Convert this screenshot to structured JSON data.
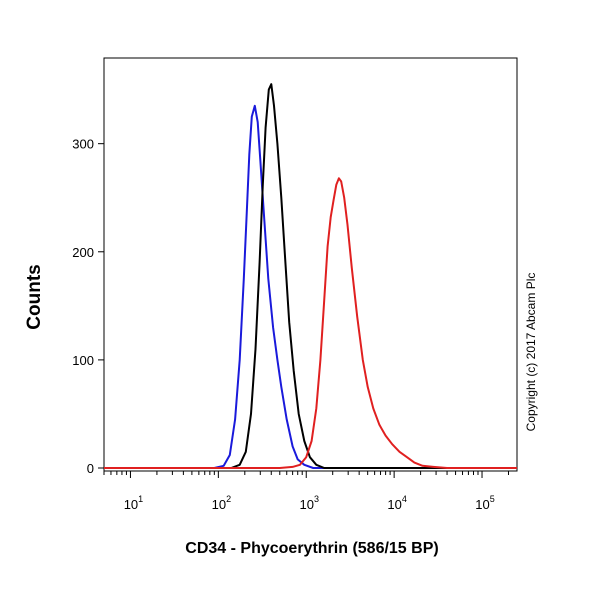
{
  "chart_data": {
    "type": "line",
    "title": "",
    "xlabel": "CD34 - Phycoerythrin (586/15 BP)",
    "ylabel": "Counts",
    "x_scale": "log",
    "xlim": [
      5,
      250000
    ],
    "ylim": [
      0,
      370
    ],
    "x_ticks": [
      {
        "value": 10,
        "base": "10",
        "exp": "1"
      },
      {
        "value": 100,
        "base": "10",
        "exp": "2"
      },
      {
        "value": 1000,
        "base": "10",
        "exp": "3"
      },
      {
        "value": 10000,
        "base": "10",
        "exp": "4"
      },
      {
        "value": 100000,
        "base": "10",
        "exp": "5"
      }
    ],
    "y_ticks": [
      {
        "value": 0,
        "label": "0"
      },
      {
        "value": 100,
        "label": "100"
      },
      {
        "value": 200,
        "label": "200"
      },
      {
        "value": 300,
        "label": "300"
      }
    ],
    "grid": false,
    "legend": "none",
    "annotation": "Copyright (c) 2017 Abcam Plc",
    "series": [
      {
        "color": "#1a1adb",
        "points": [
          [
            5,
            0
          ],
          [
            90,
            0
          ],
          [
            115,
            2
          ],
          [
            135,
            12
          ],
          [
            155,
            45
          ],
          [
            175,
            100
          ],
          [
            195,
            175
          ],
          [
            210,
            235
          ],
          [
            225,
            290
          ],
          [
            240,
            325
          ],
          [
            260,
            335
          ],
          [
            280,
            320
          ],
          [
            300,
            285
          ],
          [
            330,
            235
          ],
          [
            370,
            175
          ],
          [
            420,
            130
          ],
          [
            470,
            100
          ],
          [
            520,
            75
          ],
          [
            600,
            45
          ],
          [
            700,
            20
          ],
          [
            800,
            8
          ],
          [
            950,
            3
          ],
          [
            1200,
            0
          ],
          [
            250000,
            0
          ]
        ]
      },
      {
        "color": "#000000",
        "points": [
          [
            5,
            0
          ],
          [
            140,
            0
          ],
          [
            175,
            3
          ],
          [
            205,
            15
          ],
          [
            235,
            50
          ],
          [
            265,
            110
          ],
          [
            295,
            190
          ],
          [
            320,
            260
          ],
          [
            345,
            315
          ],
          [
            375,
            350
          ],
          [
            400,
            355
          ],
          [
            430,
            335
          ],
          [
            470,
            300
          ],
          [
            520,
            250
          ],
          [
            580,
            190
          ],
          [
            640,
            135
          ],
          [
            720,
            90
          ],
          [
            820,
            50
          ],
          [
            950,
            25
          ],
          [
            1100,
            10
          ],
          [
            1300,
            3
          ],
          [
            1600,
            0
          ],
          [
            250000,
            0
          ]
        ]
      },
      {
        "color": "#e02020",
        "points": [
          [
            5,
            0
          ],
          [
            500,
            0
          ],
          [
            700,
            1
          ],
          [
            850,
            3
          ],
          [
            1000,
            10
          ],
          [
            1150,
            25
          ],
          [
            1300,
            55
          ],
          [
            1450,
            100
          ],
          [
            1600,
            155
          ],
          [
            1750,
            205
          ],
          [
            1900,
            232
          ],
          [
            2050,
            248
          ],
          [
            2200,
            262
          ],
          [
            2350,
            268
          ],
          [
            2500,
            265
          ],
          [
            2700,
            250
          ],
          [
            2950,
            225
          ],
          [
            3300,
            185
          ],
          [
            3800,
            140
          ],
          [
            4400,
            100
          ],
          [
            5000,
            75
          ],
          [
            5800,
            55
          ],
          [
            6800,
            40
          ],
          [
            8000,
            30
          ],
          [
            9500,
            22
          ],
          [
            11500,
            15
          ],
          [
            14000,
            10
          ],
          [
            17000,
            5
          ],
          [
            21000,
            2
          ],
          [
            28000,
            1
          ],
          [
            40000,
            0
          ],
          [
            250000,
            0
          ]
        ]
      }
    ]
  }
}
